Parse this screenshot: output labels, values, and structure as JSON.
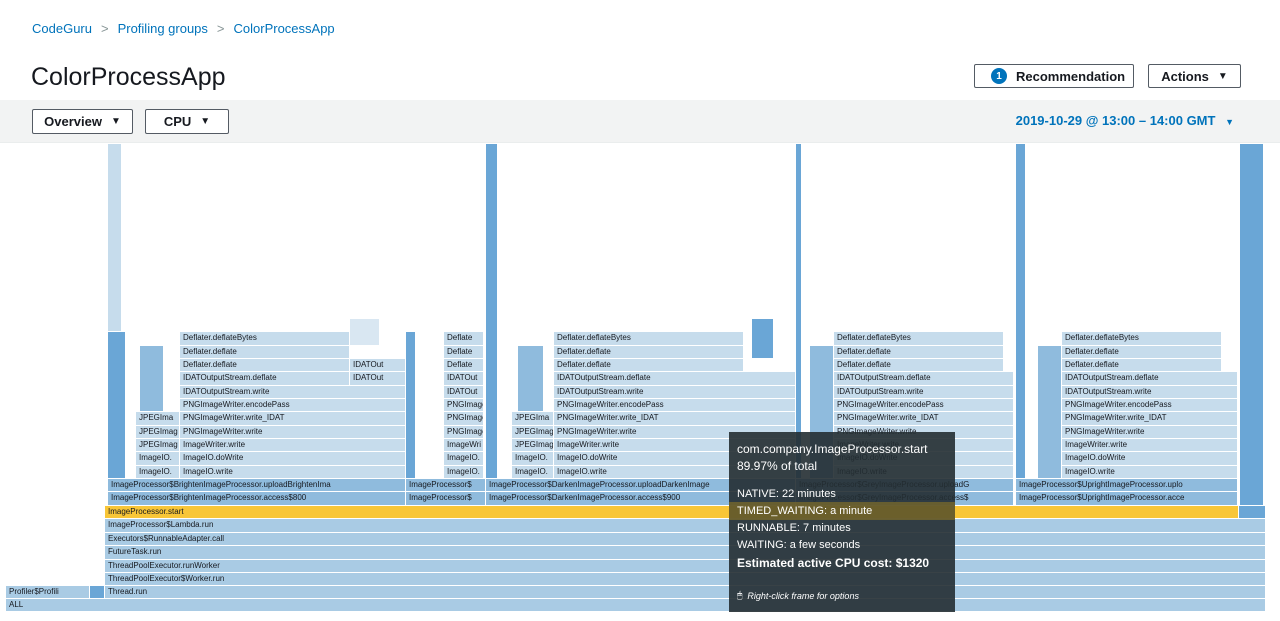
{
  "breadcrumb": {
    "items": [
      "CodeGuru",
      "Profiling groups",
      "ColorProcessApp"
    ],
    "separator": ">"
  },
  "page": {
    "title": "ColorProcessApp"
  },
  "header_actions": {
    "recommendation_count": "1",
    "recommendation_label": "Recommendation",
    "actions_label": "Actions",
    "caret": "▼"
  },
  "toolbar": {
    "view_select": "Overview",
    "metric_select": "CPU",
    "time_range": "2019-10-29 @ 13:00 – 14:00 GMT",
    "caret": "▼"
  },
  "flame": {
    "bottom_frames": [
      "ALL",
      "Thread.run",
      "ThreadPoolExecutor$Worker.run",
      "ThreadPoolExecutor.runWorker",
      "FutureTask.run",
      "Executors$RunnableAdapter.call",
      "ImageProcessor$Lambda.run",
      "ImageProcessor.start"
    ],
    "profiler_frame": "Profiler$Profili",
    "column_frames": [
      {
        "frames": [
          "ImageProcessor$BrightenImageProcessor.access$800",
          "ImageProcessor$BrightenImageProcessor.uploadBrightenIma"
        ]
      },
      {
        "frames": [
          "ImageProcessor$",
          "ImageProcessor$"
        ]
      },
      {
        "frames": [
          "ImageProcessor$DarkenImageProcessor.access$900",
          "ImageProcessor$DarkenImageProcessor.uploadDarkenImage"
        ]
      },
      {
        "frames": [
          "ImageProcessor$GreyImageProcessor.access$",
          "ImageProcessor$GreyImageProcessor.uploadG"
        ]
      },
      {
        "frames": [
          "ImageProcessor$UprightImageProcessor.acce",
          "ImageProcessor$UprightImageProcessor.uplo"
        ]
      }
    ],
    "stack_a": [
      "ImageIO.write",
      "ImageIO.doWrite",
      "ImageWriter.write",
      "PNGImageWriter.write",
      "PNGImageWriter.write_IDAT",
      "PNGImageWriter.encodePass",
      "IDATOutputStream.write",
      "IDATOutputStream.deflate",
      "Deflater.deflate",
      "Deflater.deflate",
      "Deflater.deflateBytes"
    ],
    "stack_b": [
      "ImageIO.",
      "ImageIO.",
      "JPEGImag",
      "JPEGImag",
      "JPEGIma"
    ],
    "stack_c": [
      "ImageIO.",
      "ImageWri",
      "PNGImage",
      "PNGImage",
      "PNGImage",
      "IDATOut",
      "IDATOut",
      "Deflate",
      "Deflate",
      "Deflate"
    ],
    "idat_side": [
      "IDATOut",
      "IDATOut"
    ]
  },
  "tooltip": {
    "title": "com.company.ImageProcessor.start",
    "percent": "89.97% of total",
    "native": "NATIVE: 22 minutes",
    "timed_waiting": "TIMED_WAITING: a minute",
    "runnable": "RUNNABLE: 7 minutes",
    "waiting": "WAITING: a few seconds",
    "cost": "Estimated active CPU cost: $1320",
    "hint": "Right-click frame for options"
  }
}
